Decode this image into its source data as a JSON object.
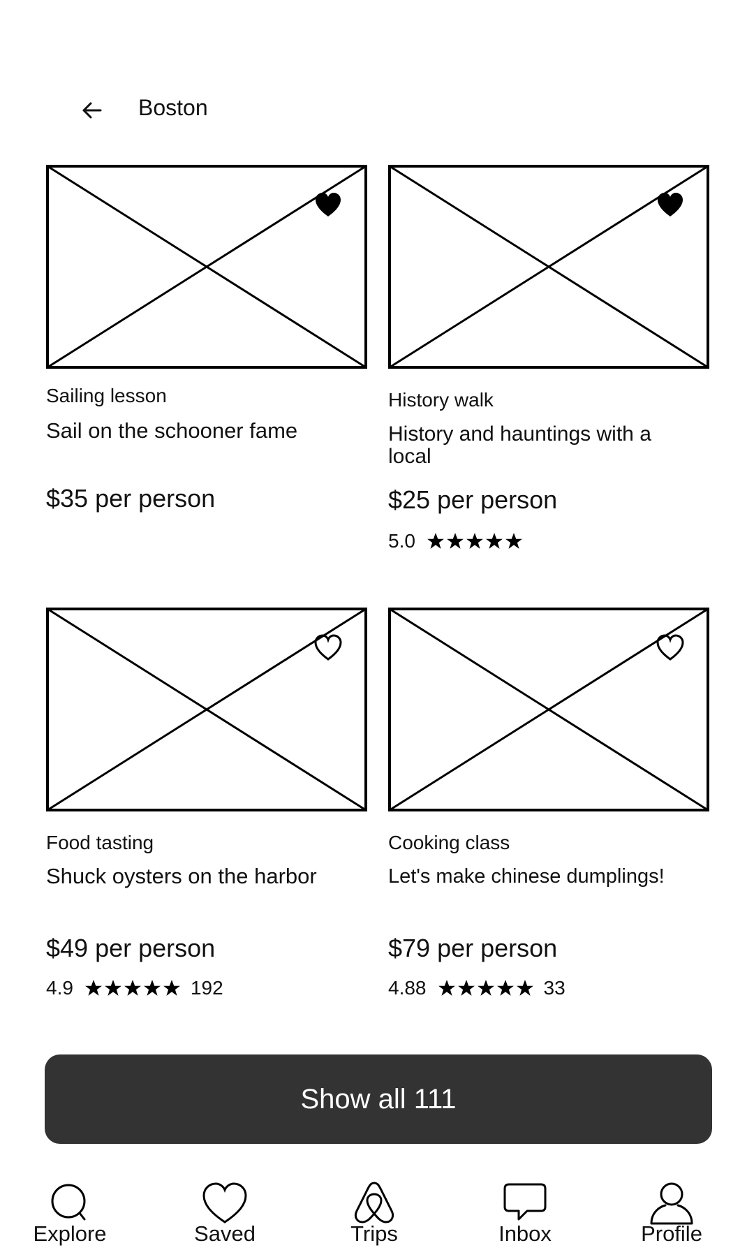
{
  "header": {
    "city": "Boston"
  },
  "cards": [
    {
      "category": "Sailing lesson",
      "title": "Sail on the schooner fame",
      "price": "$35 per person",
      "saved": true
    },
    {
      "category": "History walk",
      "title": "History and hauntings with a local",
      "price": "$25 per person",
      "rating": "5.0",
      "saved": true
    },
    {
      "category": "Food tasting",
      "title": "Shuck oysters on the harbor",
      "price": "$49 per person",
      "rating": "4.9",
      "reviews": "192",
      "saved": false
    },
    {
      "category": "Cooking class",
      "title": "Let's make chinese dumplings!",
      "price": "$79 per person",
      "rating": "4.88",
      "reviews": "33",
      "saved": false
    }
  ],
  "show_all": {
    "label": "Show all 111"
  },
  "nav": {
    "items": [
      {
        "label": "Explore",
        "icon": "search-icon"
      },
      {
        "label": "Saved",
        "icon": "heart-icon"
      },
      {
        "label": "Trips",
        "icon": "trips-icon"
      },
      {
        "label": "Inbox",
        "icon": "chat-bubble-icon"
      },
      {
        "label": "Profile",
        "icon": "user-icon"
      }
    ]
  }
}
